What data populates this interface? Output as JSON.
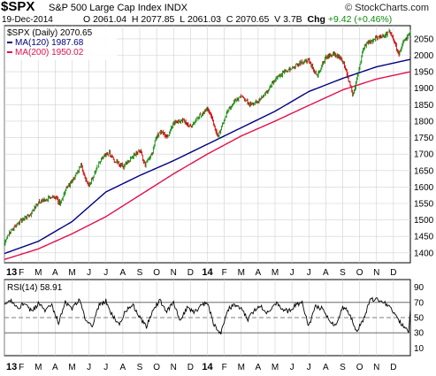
{
  "header": {
    "symbol": "$SPX",
    "name": "S&P 500 Large Cap Index",
    "exchange": "INDX",
    "brand": "© StockCharts.com",
    "date": "19-Dec-2014",
    "open_label": "O",
    "open": "2061.04",
    "high_label": "H",
    "high": "2077.85",
    "low_label": "L",
    "low": "2061.03",
    "close_label": "C",
    "close": "2070.65",
    "volume_label": "V",
    "volume": "3.7B",
    "change_label": "Chg",
    "change": "+9.42 (+0.46%)"
  },
  "legend": {
    "price": "$SPX (Daily) 2070.65",
    "ma120": "MA(120) 1987.68",
    "ma200": "MA(200) 1950.02",
    "rsi": "RSI(14) 58.91"
  },
  "colors": {
    "up": "#0a8a0a",
    "down": "#cc0000",
    "ma120": "#000080",
    "ma200": "#e0104a",
    "rsi": "#000000",
    "grid": "#d0d0d0",
    "frame": "#000000"
  },
  "chart_data": [
    {
      "type": "line",
      "subtype": "candlestick_with_moving_averages",
      "ylim": [
        1370,
        2090
      ],
      "yticks": [
        1400,
        1450,
        1500,
        1550,
        1600,
        1650,
        1700,
        1750,
        1800,
        1850,
        1900,
        1950,
        2000,
        2050
      ],
      "x_ticks": [
        "13",
        "F",
        "M",
        "A",
        "M",
        "J",
        "J",
        "A",
        "S",
        "O",
        "N",
        "D",
        "14",
        "F",
        "M",
        "A",
        "M",
        "J",
        "J",
        "A",
        "S",
        "O",
        "N",
        "D"
      ],
      "x_tick_bold": [
        true,
        false,
        false,
        false,
        false,
        false,
        false,
        false,
        false,
        false,
        false,
        false,
        true,
        false,
        false,
        false,
        false,
        false,
        false,
        false,
        false,
        false,
        false,
        false
      ],
      "x_range": [
        0,
        24
      ],
      "grid": true,
      "series": [
        {
          "name": "$SPX (Daily)",
          "x": [
            0,
            0.3,
            0.6,
            1,
            1.5,
            2,
            2.5,
            3,
            3.3,
            3.6,
            4,
            4.5,
            4.7,
            5,
            5.4,
            5.8,
            6.2,
            6.5,
            7,
            7.5,
            8,
            8.3,
            8.7,
            9,
            9.3,
            9.6,
            10,
            10.5,
            11,
            11.5,
            12,
            12.3,
            12.6,
            12.9,
            13.2,
            13.6,
            14,
            14.5,
            15,
            15.5,
            16,
            16.5,
            17,
            17.5,
            18,
            18.5,
            19,
            19.5,
            20,
            20.3,
            20.6,
            20.9,
            21.2,
            21.5,
            22,
            22.5,
            22.8,
            23,
            23.3,
            23.6,
            23.9,
            24
          ],
          "values": [
            1426,
            1462,
            1480,
            1498,
            1515,
            1552,
            1563,
            1570,
            1545,
            1593,
            1615,
            1665,
            1635,
            1605,
            1652,
            1690,
            1705,
            1680,
            1660,
            1690,
            1710,
            1668,
            1700,
            1755,
            1770,
            1745,
            1795,
            1802,
            1782,
            1815,
            1840,
            1805,
            1750,
            1790,
            1835,
            1860,
            1875,
            1850,
            1860,
            1890,
            1925,
            1950,
            1960,
            1978,
            1985,
            1935,
            1995,
            2005,
            1985,
            1935,
            1880,
            1945,
            2018,
            2040,
            2055,
            2060,
            2071,
            2045,
            2003,
            2040,
            2062,
            2070.65
          ]
        },
        {
          "name": "MA(120)",
          "x": [
            0,
            2,
            4,
            6,
            8,
            10,
            12,
            14,
            16,
            18,
            20,
            22,
            24
          ],
          "values": [
            1398,
            1435,
            1495,
            1585,
            1635,
            1680,
            1730,
            1780,
            1830,
            1890,
            1930,
            1965,
            1987.68
          ]
        },
        {
          "name": "MA(200)",
          "x": [
            0,
            2,
            4,
            6,
            8,
            10,
            12,
            14,
            16,
            18,
            20,
            22,
            24
          ],
          "values": [
            1380,
            1412,
            1458,
            1510,
            1575,
            1640,
            1700,
            1755,
            1800,
            1848,
            1895,
            1928,
            1950.02
          ]
        }
      ]
    },
    {
      "type": "line",
      "subtype": "indicator",
      "ylim": [
        0,
        100
      ],
      "yticks": [
        10,
        30,
        50,
        70,
        90
      ],
      "reference_lines": [
        30,
        50,
        70
      ],
      "x_ticks": [
        "13",
        "F",
        "M",
        "A",
        "M",
        "J",
        "J",
        "A",
        "S",
        "O",
        "N",
        "D",
        "14",
        "F",
        "M",
        "A",
        "M",
        "J",
        "J",
        "A",
        "S",
        "O",
        "N",
        "D"
      ],
      "x_tick_bold": [
        true,
        false,
        false,
        false,
        false,
        false,
        false,
        false,
        false,
        false,
        false,
        false,
        true,
        false,
        false,
        false,
        false,
        false,
        false,
        false,
        false,
        false,
        false,
        false
      ],
      "x_range": [
        0,
        24
      ],
      "grid": true,
      "series": [
        {
          "name": "RSI(14)",
          "x": [
            0,
            0.4,
            0.8,
            1.2,
            1.6,
            2,
            2.4,
            2.8,
            3.2,
            3.6,
            4,
            4.4,
            4.8,
            5.2,
            5.6,
            6,
            6.4,
            6.8,
            7.2,
            7.6,
            8,
            8.4,
            8.8,
            9.2,
            9.6,
            10,
            10.4,
            10.8,
            11.2,
            11.6,
            12,
            12.4,
            12.8,
            13.2,
            13.6,
            14,
            14.4,
            14.8,
            15.2,
            15.6,
            16,
            16.4,
            16.8,
            17.2,
            17.6,
            18,
            18.4,
            18.8,
            19.2,
            19.6,
            20,
            20.4,
            20.8,
            21.2,
            21.6,
            22,
            22.4,
            22.8,
            23.2,
            23.6,
            23.9,
            24
          ],
          "values": [
            66,
            72,
            63,
            70,
            58,
            68,
            60,
            66,
            44,
            70,
            62,
            74,
            48,
            40,
            66,
            72,
            52,
            42,
            60,
            66,
            50,
            38,
            62,
            72,
            58,
            70,
            44,
            64,
            56,
            66,
            70,
            40,
            30,
            60,
            68,
            62,
            48,
            60,
            64,
            56,
            70,
            62,
            58,
            66,
            70,
            38,
            64,
            62,
            46,
            40,
            64,
            56,
            32,
            46,
            72,
            76,
            70,
            66,
            50,
            38,
            30,
            58.91
          ]
        }
      ]
    }
  ]
}
